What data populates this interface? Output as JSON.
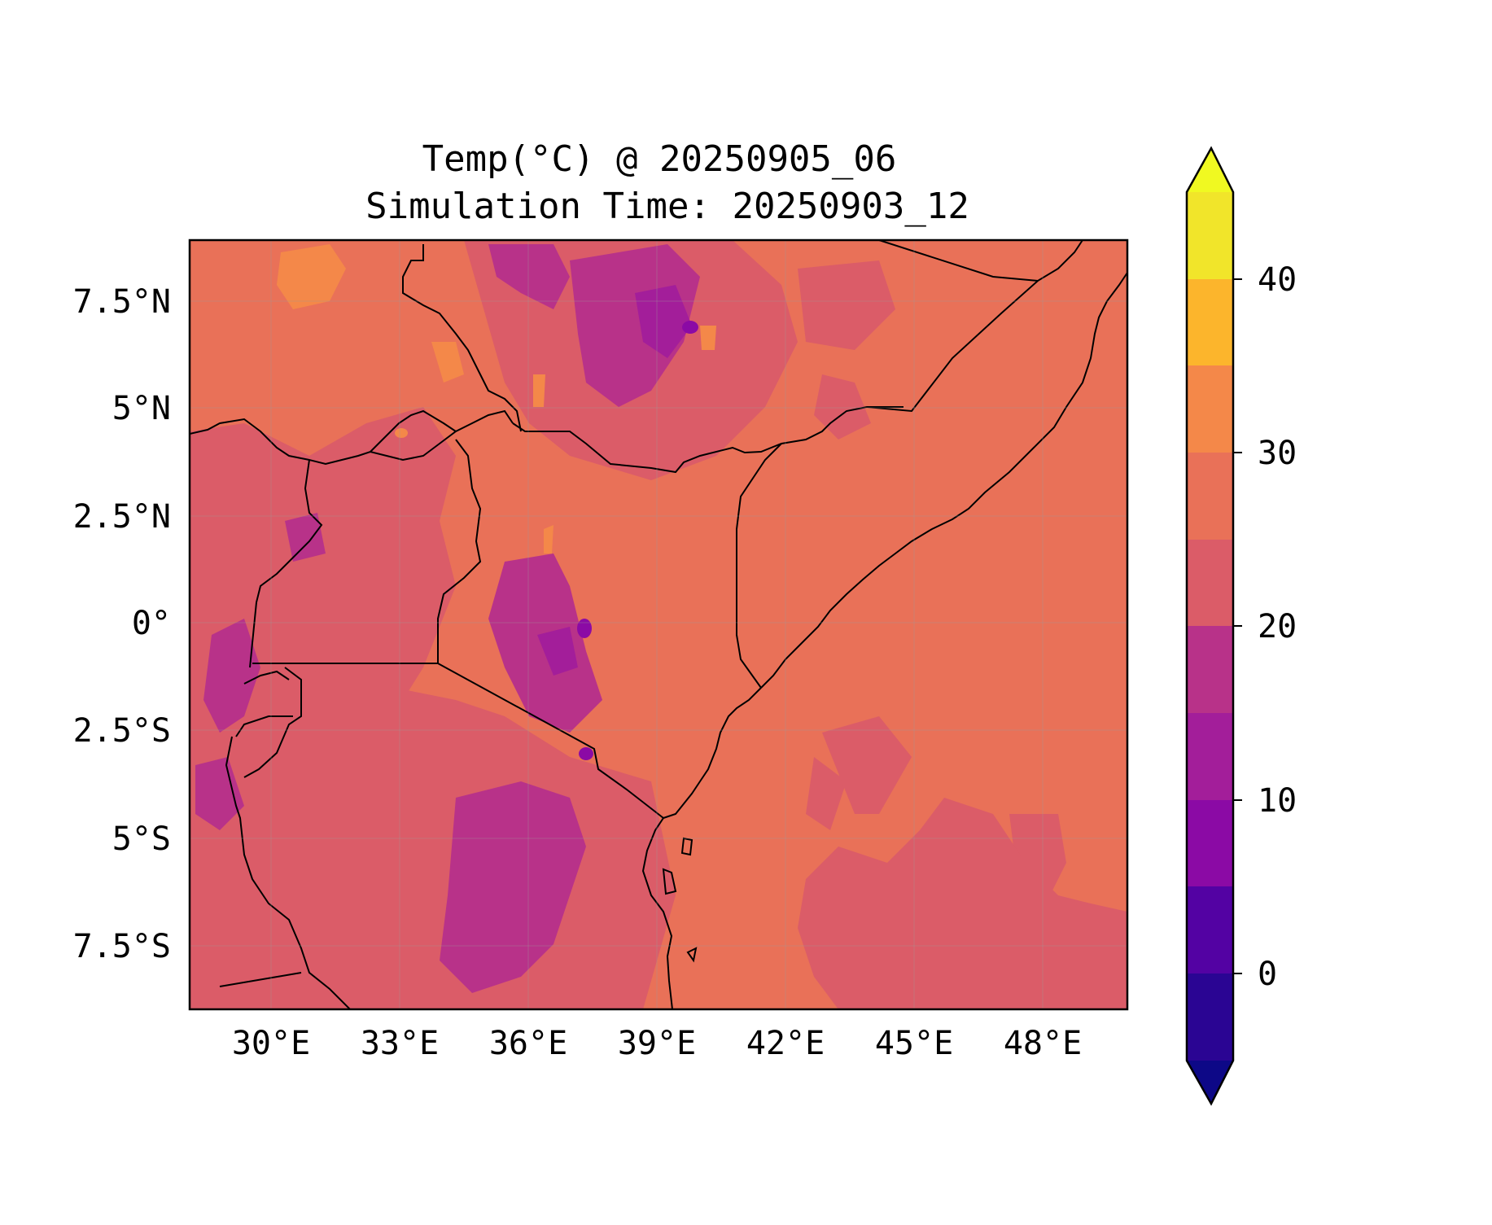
{
  "title_line1": "Temp(°C) @ 20250905_06",
  "title_line2": "Simulation Time: 20250903_12",
  "colors": {
    "cold_extend": "#0d0887",
    "hot_extend": "#f0f921",
    "levels": [
      "#0d0887",
      "#2a0593",
      "#5302a3",
      "#8b0aa5",
      "#a31e9a",
      "#b83289",
      "#db5c68",
      "#e97158",
      "#f48849",
      "#fba238",
      "#f4e61e"
    ]
  },
  "map": {
    "lon_labels": [
      "30°E",
      "33°E",
      "36°E",
      "39°E",
      "42°E",
      "45°E",
      "48°E"
    ],
    "lat_labels": [
      "7.5°N",
      "5°N",
      "2.5°N",
      "0°",
      "2.5°S",
      "5°S",
      "7.5°S"
    ]
  },
  "colorbar": {
    "tick_labels": [
      "0",
      "10",
      "20",
      "30",
      "40"
    ]
  }
}
